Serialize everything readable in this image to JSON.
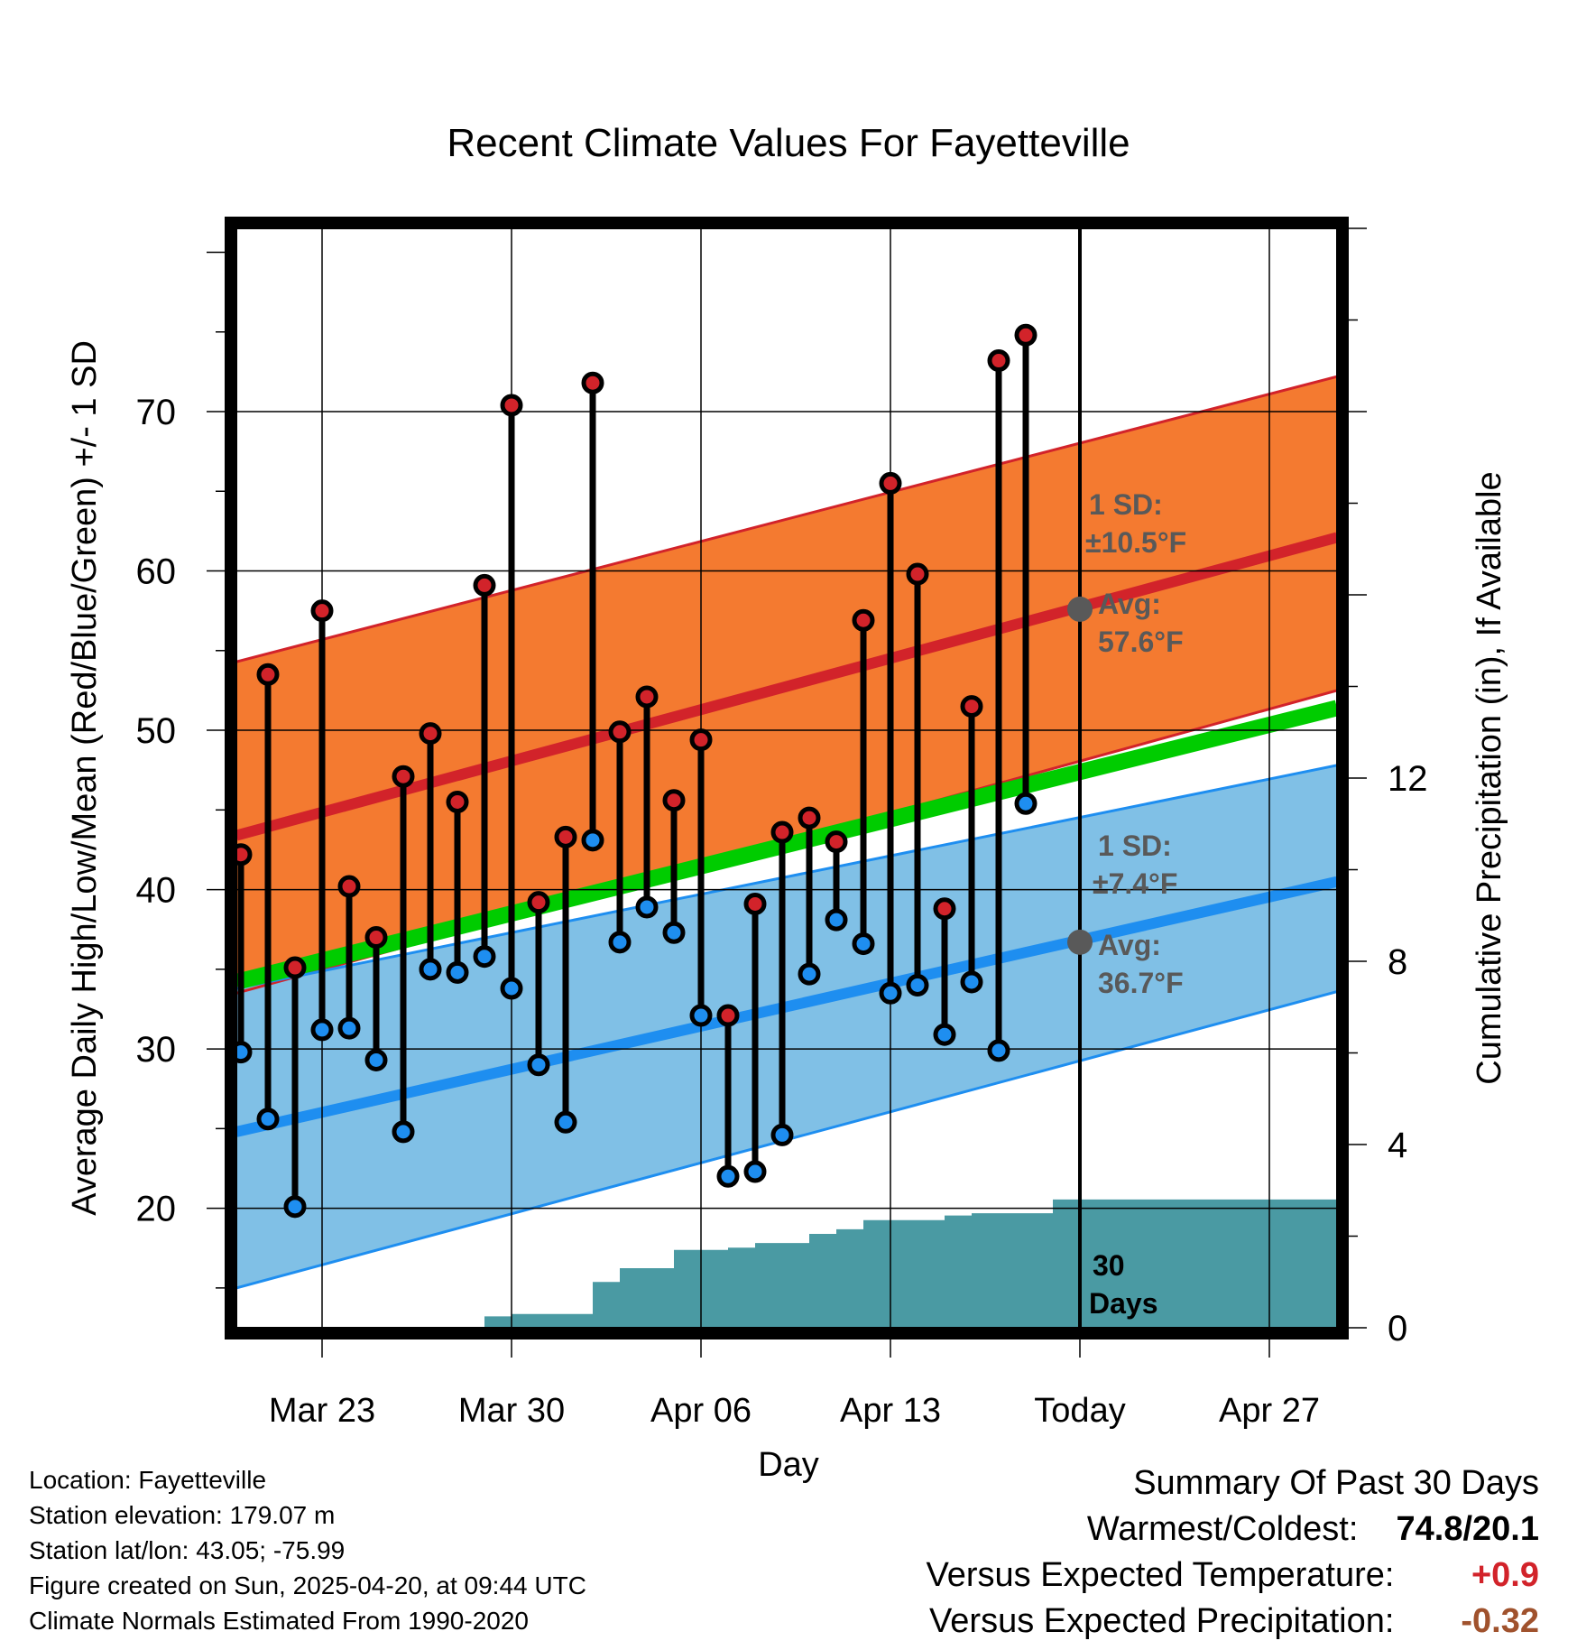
{
  "chart_data": {
    "type": "line",
    "title": "Recent Climate Values For Fayetteville",
    "xlabel": "Day",
    "ylabel": "Average Daily High/Low/Mean (Red/Blue/Green) +/- 1 SD",
    "y2label": "Cumulative Precipitation (in), If Available",
    "ylim": [
      12.5,
      81.5
    ],
    "y2lim": [
      0,
      24
    ],
    "x_tick_labels": [
      "Mar 23",
      "Mar 30",
      "Apr 06",
      "Apr 13",
      "Today",
      "Apr 27"
    ],
    "x_tick_dates": [
      "2025-03-23",
      "2025-03-30",
      "2025-04-06",
      "2025-04-13",
      "2025-04-20",
      "2025-04-27"
    ],
    "xlim": [
      "2025-03-19 20:00",
      "2025-04-29 12:00"
    ],
    "y_ticks": [
      20,
      30,
      40,
      50,
      60,
      70
    ],
    "y2_ticks": [
      0,
      4,
      8,
      12
    ],
    "grid": true,
    "today": "2025-04-20",
    "colors": {
      "high_band": "#f47a30",
      "high_line": "#d2232a",
      "low_band": "#80c0e6",
      "low_line": "#1e8ef0",
      "mean_line": "#00cc00",
      "precip": "#4a9aa3",
      "high_dot": "#d2232a",
      "low_dot": "#1e8ef0",
      "annotation": "#595959"
    },
    "normals": {
      "high_avg": {
        "start": 43.4,
        "end": 62.1
      },
      "high_sd_band": {
        "lower": [
          33.5,
          52.5
        ],
        "upper": [
          54.3,
          72.2
        ]
      },
      "low_avg": {
        "start": 24.8,
        "end": 40.5
      },
      "low_sd_band": {
        "lower": [
          15.0,
          33.6
        ],
        "upper": [
          33.8,
          47.8
        ]
      },
      "mean_avg": {
        "start": 34.2,
        "end": 51.4
      }
    },
    "series": [
      {
        "name": "High",
        "dates": [
          "2025-03-20",
          "2025-03-21",
          "2025-03-22",
          "2025-03-23",
          "2025-03-24",
          "2025-03-25",
          "2025-03-26",
          "2025-03-27",
          "2025-03-28",
          "2025-03-29",
          "2025-03-30",
          "2025-03-31",
          "2025-04-01",
          "2025-04-02",
          "2025-04-03",
          "2025-04-04",
          "2025-04-05",
          "2025-04-06",
          "2025-04-07",
          "2025-04-08",
          "2025-04-09",
          "2025-04-10",
          "2025-04-11",
          "2025-04-12",
          "2025-04-13",
          "2025-04-14",
          "2025-04-15",
          "2025-04-16",
          "2025-04-17",
          "2025-04-18",
          "2025-04-19"
        ],
        "values": [
          42.2,
          53.5,
          35.1,
          57.5,
          40.2,
          37.0,
          47.1,
          49.8,
          45.5,
          59.1,
          70.4,
          39.2,
          43.3,
          71.8,
          49.9,
          52.1,
          45.6,
          49.4,
          32.1,
          39.1,
          43.6,
          44.5,
          43.0,
          56.9,
          65.5,
          59.8,
          38.8,
          51.5,
          73.2,
          74.8,
          null
        ]
      },
      {
        "name": "Low",
        "dates": [
          "2025-03-20",
          "2025-03-21",
          "2025-03-22",
          "2025-03-23",
          "2025-03-24",
          "2025-03-25",
          "2025-03-26",
          "2025-03-27",
          "2025-03-28",
          "2025-03-29",
          "2025-03-30",
          "2025-03-31",
          "2025-04-01",
          "2025-04-02",
          "2025-04-03",
          "2025-04-04",
          "2025-04-05",
          "2025-04-06",
          "2025-04-07",
          "2025-04-08",
          "2025-04-09",
          "2025-04-10",
          "2025-04-11",
          "2025-04-12",
          "2025-04-13",
          "2025-04-14",
          "2025-04-15",
          "2025-04-16",
          "2025-04-17",
          "2025-04-18",
          "2025-04-19"
        ],
        "values": [
          29.8,
          25.6,
          20.1,
          31.2,
          31.3,
          29.3,
          24.8,
          35.0,
          34.8,
          35.8,
          33.8,
          29.0,
          25.4,
          43.1,
          36.7,
          38.9,
          37.3,
          32.1,
          22.0,
          22.3,
          24.6,
          34.7,
          38.1,
          36.6,
          33.5,
          34.0,
          30.9,
          34.2,
          29.9,
          45.4,
          null
        ]
      }
    ],
    "precipitation": {
      "dates": [
        "2025-03-19 20:00",
        "2025-03-28",
        "2025-03-29",
        "2025-03-30",
        "2025-04-01",
        "2025-04-02",
        "2025-04-03",
        "2025-04-04",
        "2025-04-05",
        "2025-04-07",
        "2025-04-08",
        "2025-04-09",
        "2025-04-10",
        "2025-04-11",
        "2025-04-12",
        "2025-04-14",
        "2025-04-15",
        "2025-04-16",
        "2025-04-18",
        "2025-04-19",
        "2025-04-29 12:00"
      ],
      "values": [
        0,
        0,
        0.25,
        0.3,
        0.3,
        1.0,
        1.3,
        1.3,
        1.7,
        1.75,
        1.85,
        1.85,
        2.05,
        2.15,
        2.35,
        2.35,
        2.45,
        2.5,
        2.5,
        2.8,
        2.8
      ]
    },
    "annotations": {
      "high_sd_label": "1 SD:",
      "high_sd_value": "±10.5°F",
      "high_avg_label": "Avg:",
      "high_avg_value": "57.6°F",
      "high_avg_today": 57.6,
      "low_sd_label": "1 SD:",
      "low_sd_value": "±7.4°F",
      "low_avg_label": "Avg:",
      "low_avg_value": "36.7°F",
      "low_avg_today": 36.7,
      "days_label_1": "30",
      "days_label_2": "Days"
    }
  },
  "footer": {
    "location": "Location: Fayetteville",
    "elevation": "Station elevation: 179.07 m",
    "latlon": "Station lat/lon: 43.05; -75.99",
    "created": "Figure created on Sun, 2025-04-20, at 09:44 UTC",
    "normals": "Climate Normals Estimated From 1990-2020"
  },
  "summary": {
    "title": "Summary Of Past 30 Days",
    "warm_cold_label": "Warmest/Coldest:",
    "warm_cold_value": "74.8/20.1",
    "temp_label": "Versus Expected Temperature:",
    "temp_value": "+0.9",
    "temp_color": "#d2232a",
    "precip_label": "Versus Expected Precipitation:",
    "precip_value": "-0.32",
    "precip_color": "#a0522d"
  }
}
